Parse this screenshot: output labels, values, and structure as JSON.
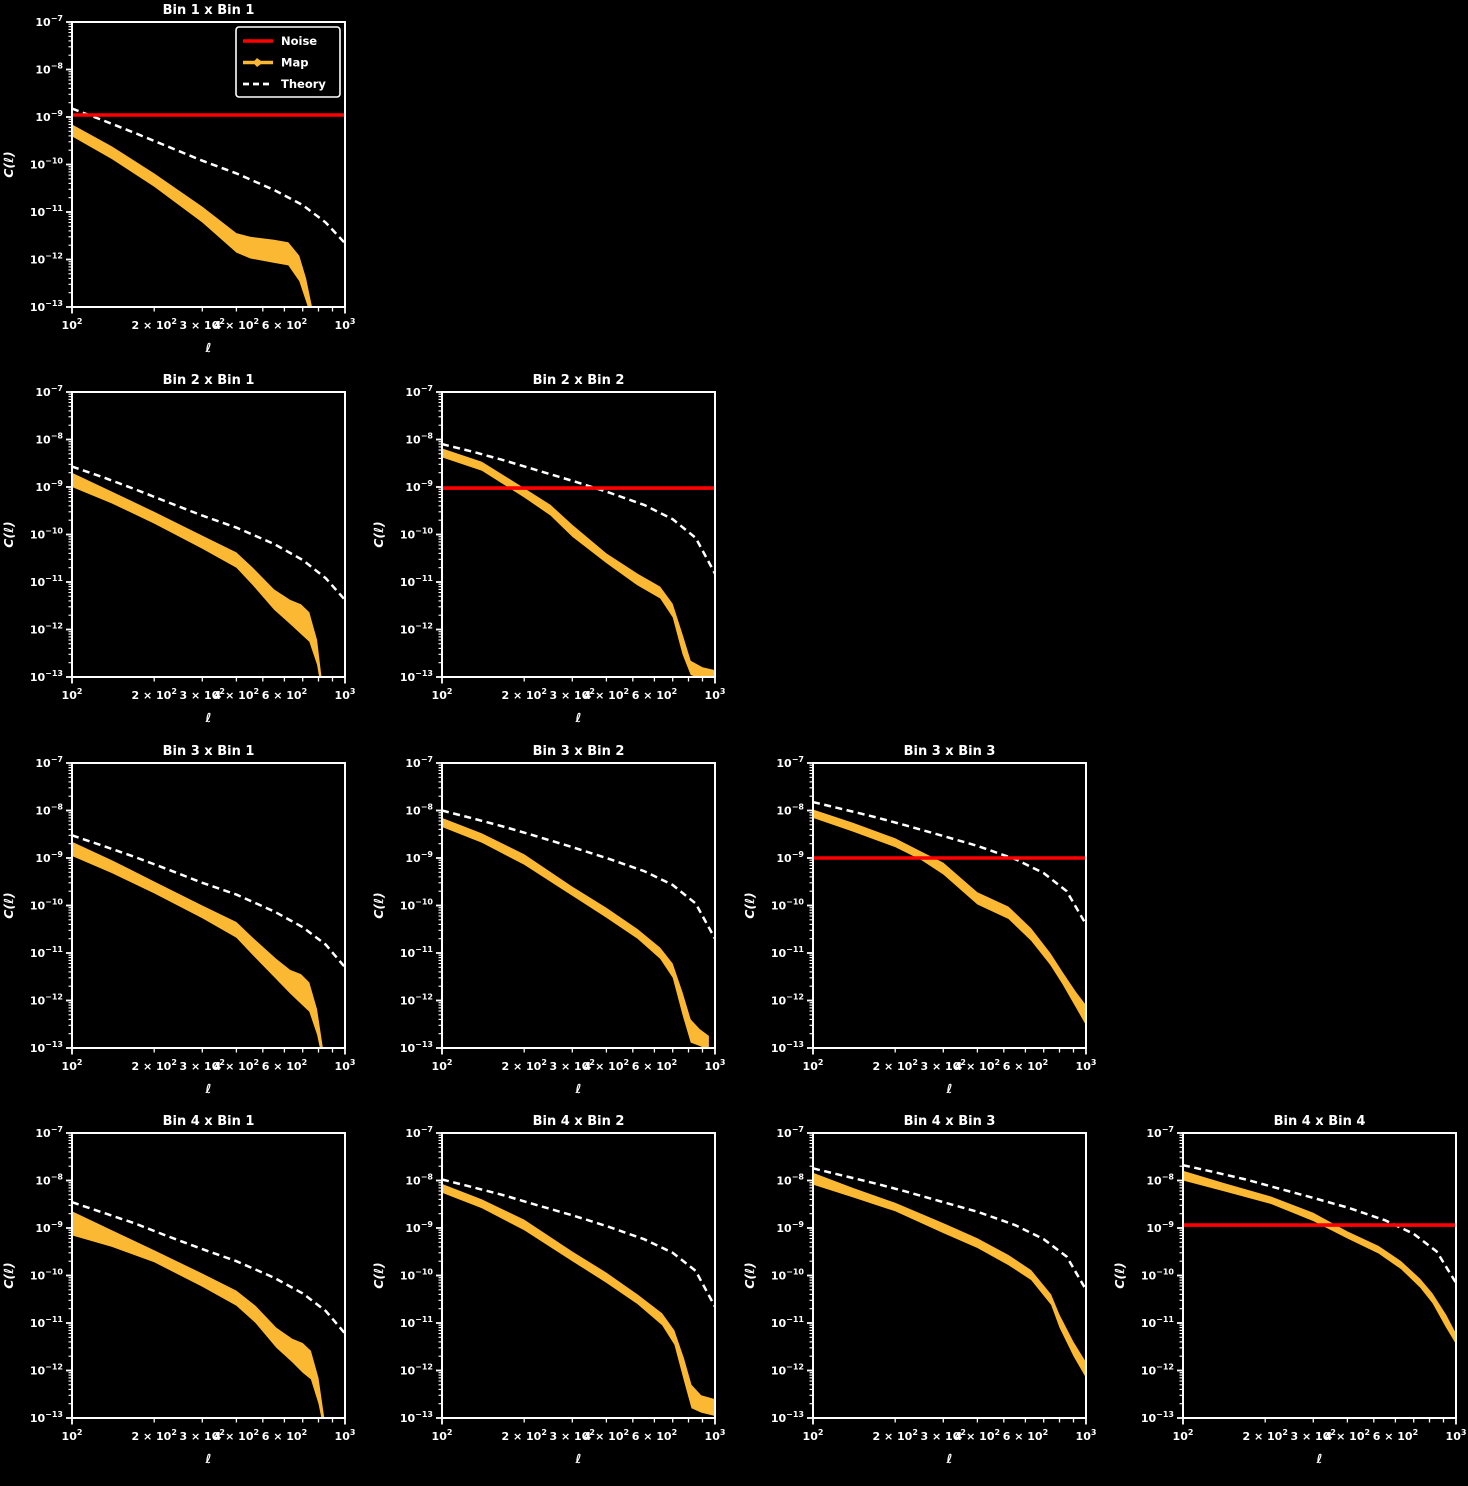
{
  "figure": {
    "background": "#000000",
    "text_color": "#ffffff",
    "colors": {
      "noise": "#ff0000",
      "map": "#fbb832",
      "theory": "#ffffff"
    }
  },
  "axes": {
    "xlabel": "ℓ",
    "ylabel": "C(ℓ)",
    "xscale": "log",
    "yscale": "log",
    "xlim": [
      100,
      1000
    ],
    "ylim": [
      1e-13,
      1e-07
    ],
    "grid": false,
    "xticks": [
      {
        "v": 100,
        "base": "10",
        "exp": "2",
        "major": true
      },
      {
        "v": 200,
        "base": "2 × 10",
        "exp": "2",
        "major": false
      },
      {
        "v": 300,
        "base": "3 × 10",
        "exp": "2",
        "major": false
      },
      {
        "v": 400,
        "base": "4 × 10",
        "exp": "2",
        "major": false
      },
      {
        "v": 600,
        "base": "6 × 10",
        "exp": "2",
        "major": false
      },
      {
        "v": 1000,
        "base": "10",
        "exp": "3",
        "major": true
      }
    ],
    "x_minor_unlabeled": [
      500,
      700,
      800,
      900
    ],
    "yticks": [
      {
        "v": 1e-07,
        "base": "10",
        "exp": "−7"
      },
      {
        "v": 1e-08,
        "base": "10",
        "exp": "−8"
      },
      {
        "v": 1e-09,
        "base": "10",
        "exp": "−9"
      },
      {
        "v": 1e-10,
        "base": "10",
        "exp": "−10"
      },
      {
        "v": 1e-11,
        "base": "10",
        "exp": "−11"
      },
      {
        "v": 1e-12,
        "base": "10",
        "exp": "−12"
      },
      {
        "v": 1e-13,
        "base": "10",
        "exp": "−13"
      }
    ]
  },
  "legend": {
    "position": "upper-right",
    "items": [
      {
        "label": "Noise",
        "color": "#ff0000",
        "style": "solid"
      },
      {
        "label": "Map",
        "color": "#fbb832",
        "style": "solid-marker"
      },
      {
        "label": "Theory",
        "color": "#ffffff",
        "style": "dashed"
      }
    ]
  },
  "chart_data": [
    {
      "type": "line",
      "title": "Bin 1 x Bin 1",
      "row": 0,
      "col": 0,
      "show_legend": true,
      "noise": 1.1e-09,
      "theory": {
        "x": [
          100,
          130,
          170,
          220,
          300,
          400,
          550,
          700,
          850,
          1000
        ],
        "y": [
          1.5e-09,
          8.5e-10,
          4.6e-10,
          2.5e-10,
          1.2e-10,
          6.5e-11,
          2.9e-11,
          1.4e-11,
          6e-12,
          2.2e-12
        ]
      },
      "map_band": {
        "x": [
          100,
          140,
          200,
          300,
          400,
          450,
          550,
          620,
          680,
          720,
          760
        ],
        "hi": [
          7e-10,
          2.4e-10,
          6.5e-11,
          1.3e-11,
          3.6e-12,
          3e-12,
          2.6e-12,
          2.3e-12,
          1.2e-12,
          4e-13,
          9e-14
        ],
        "lo": [
          3.9e-10,
          1.3e-10,
          3.4e-11,
          6e-12,
          1.4e-12,
          1.05e-12,
          8.5e-13,
          7.5e-13,
          3.5e-13,
          1.3e-13,
          5e-14
        ]
      }
    },
    {
      "type": "line",
      "title": "Bin 2 x Bin 1",
      "row": 1,
      "col": 0,
      "show_legend": false,
      "noise": null,
      "theory": {
        "x": [
          100,
          130,
          170,
          220,
          300,
          400,
          550,
          700,
          850,
          1000
        ],
        "y": [
          2.7e-09,
          1.6e-09,
          9e-10,
          5e-10,
          2.5e-10,
          1.4e-10,
          6.3e-11,
          2.9e-11,
          1.2e-11,
          4.2e-12
        ]
      },
      "map_band": {
        "x": [
          100,
          140,
          200,
          300,
          400,
          460,
          550,
          630,
          690,
          740,
          790,
          820
        ],
        "hi": [
          2e-09,
          8e-10,
          3e-10,
          9.5e-11,
          4.2e-11,
          2e-11,
          7e-12,
          4.2e-12,
          3.4e-12,
          2.3e-12,
          6e-13,
          1e-13
        ],
        "lo": [
          1e-09,
          4.5e-10,
          1.7e-10,
          5e-11,
          2e-11,
          8.5e-12,
          2.6e-12,
          1.3e-12,
          8e-13,
          5.5e-13,
          1.8e-13,
          5e-14
        ]
      }
    },
    {
      "type": "line",
      "title": "Bin 2 x Bin 2",
      "row": 1,
      "col": 1,
      "show_legend": false,
      "noise": 9.5e-10,
      "theory": {
        "x": [
          100,
          130,
          170,
          220,
          300,
          400,
          550,
          700,
          850,
          1000
        ],
        "y": [
          8e-09,
          5.5e-09,
          3.6e-09,
          2.3e-09,
          1.35e-09,
          8e-10,
          4.2e-10,
          2.1e-10,
          8.5e-11,
          1.5e-11
        ]
      },
      "map_band": {
        "x": [
          100,
          140,
          200,
          250,
          300,
          400,
          520,
          630,
          700,
          760,
          815,
          900,
          1000
        ],
        "hi": [
          6.5e-09,
          3.4e-09,
          9.5e-10,
          4.2e-10,
          1.6e-10,
          4e-11,
          1.5e-11,
          8e-12,
          3.5e-12,
          8e-13,
          2.2e-13,
          1.6e-13,
          1.4e-13
        ],
        "lo": [
          4.2e-09,
          2.2e-09,
          6e-10,
          2.5e-10,
          9e-11,
          2.5e-11,
          8.5e-12,
          4.5e-12,
          1.8e-12,
          3e-13,
          1.1e-13,
          9e-14,
          8e-14
        ]
      }
    },
    {
      "type": "line",
      "title": "Bin 3 x Bin 1",
      "row": 2,
      "col": 0,
      "show_legend": false,
      "noise": null,
      "theory": {
        "x": [
          100,
          130,
          170,
          220,
          300,
          400,
          550,
          700,
          850,
          1000
        ],
        "y": [
          3e-09,
          1.8e-09,
          1.05e-09,
          6e-10,
          3e-10,
          1.7e-10,
          7.5e-11,
          3.5e-11,
          1.5e-11,
          5e-12
        ]
      },
      "map_band": {
        "x": [
          100,
          140,
          200,
          300,
          400,
          460,
          560,
          630,
          690,
          740,
          790,
          830
        ],
        "hi": [
          2.2e-09,
          9e-10,
          3.2e-10,
          1e-10,
          4.5e-11,
          2.1e-11,
          7.5e-12,
          4.4e-12,
          3.6e-12,
          2.4e-12,
          6.5e-13,
          1e-13
        ],
        "lo": [
          1.1e-09,
          4.8e-10,
          1.8e-10,
          5.4e-11,
          2.1e-11,
          9e-12,
          2.8e-12,
          1.4e-12,
          8.5e-13,
          5.8e-13,
          1.9e-13,
          5e-14
        ]
      }
    },
    {
      "type": "line",
      "title": "Bin 3 x Bin 2",
      "row": 2,
      "col": 1,
      "show_legend": false,
      "noise": null,
      "theory": {
        "x": [
          100,
          130,
          170,
          220,
          300,
          400,
          550,
          700,
          850,
          1000
        ],
        "y": [
          1e-08,
          6.8e-09,
          4.5e-09,
          2.9e-09,
          1.7e-09,
          1e-09,
          5.3e-10,
          2.7e-10,
          1.1e-10,
          2e-11
        ]
      },
      "map_band": {
        "x": [
          100,
          140,
          200,
          300,
          400,
          520,
          630,
          700,
          760,
          815,
          880,
          950
        ],
        "hi": [
          7e-09,
          3.3e-09,
          1.2e-09,
          2.5e-10,
          9e-11,
          3.2e-11,
          1.3e-11,
          6e-12,
          1.5e-12,
          4e-13,
          2.5e-13,
          1.8e-13
        ],
        "lo": [
          4.5e-09,
          2.1e-09,
          7.2e-10,
          1.6e-10,
          5.5e-11,
          2e-11,
          7.5e-12,
          3e-12,
          5e-13,
          1.3e-13,
          1.1e-13,
          9e-14
        ]
      }
    },
    {
      "type": "line",
      "title": "Bin 3 x Bin 3",
      "row": 2,
      "col": 2,
      "show_legend": false,
      "noise": 1e-09,
      "theory": {
        "x": [
          100,
          130,
          170,
          220,
          300,
          400,
          550,
          700,
          850,
          1000
        ],
        "y": [
          1.5e-08,
          1.05e-08,
          7.2e-09,
          4.8e-09,
          2.9e-09,
          1.8e-09,
          9.5e-10,
          4.8e-10,
          2e-10,
          4e-11
        ]
      },
      "map_band": {
        "x": [
          100,
          140,
          200,
          250,
          300,
          400,
          520,
          630,
          740,
          820,
          920,
          1000
        ],
        "hi": [
          1.05e-08,
          5.5e-09,
          2.6e-09,
          1.35e-09,
          8e-10,
          1.9e-10,
          9.5e-11,
          3.3e-11,
          1e-11,
          4e-12,
          1.5e-12,
          8e-13
        ],
        "lo": [
          7e-09,
          3.6e-09,
          1.7e-09,
          9e-10,
          4.5e-10,
          1.05e-10,
          5.2e-11,
          1.8e-11,
          5.6e-12,
          2.2e-12,
          7e-13,
          3e-13
        ]
      }
    },
    {
      "type": "line",
      "title": "Bin 4 x Bin 1",
      "row": 3,
      "col": 0,
      "show_legend": false,
      "noise": null,
      "theory": {
        "x": [
          100,
          130,
          170,
          220,
          300,
          400,
          550,
          700,
          850,
          1000
        ],
        "y": [
          3.5e-09,
          2.1e-09,
          1.25e-09,
          7e-10,
          3.6e-10,
          2e-10,
          9e-11,
          4.2e-11,
          1.8e-11,
          6e-12
        ]
      },
      "map_band": {
        "x": [
          100,
          140,
          200,
          300,
          400,
          470,
          560,
          640,
          700,
          750,
          800,
          840
        ],
        "hi": [
          2.25e-09,
          9e-10,
          3.4e-10,
          1.1e-10,
          4.8e-11,
          2.3e-11,
          8e-12,
          4.7e-12,
          3.8e-12,
          2.6e-12,
          7e-13,
          1e-13
        ],
        "lo": [
          7e-10,
          4e-10,
          1.9e-10,
          5.8e-11,
          2.3e-11,
          1e-11,
          3e-12,
          1.5e-12,
          9e-13,
          6.5e-13,
          2e-13,
          5e-14
        ]
      }
    },
    {
      "type": "line",
      "title": "Bin 4 x Bin 2",
      "row": 3,
      "col": 1,
      "show_legend": false,
      "noise": null,
      "theory": {
        "x": [
          100,
          130,
          170,
          220,
          300,
          400,
          550,
          700,
          850,
          1000
        ],
        "y": [
          1.05e-08,
          7.2e-09,
          4.8e-09,
          3.1e-09,
          1.85e-09,
          1.1e-09,
          5.8e-10,
          3e-10,
          1.25e-10,
          2.2e-11
        ]
      },
      "map_band": {
        "x": [
          100,
          140,
          200,
          300,
          400,
          520,
          640,
          710,
          770,
          820,
          890,
          1000
        ],
        "hi": [
          8.5e-09,
          4e-09,
          1.5e-09,
          3.2e-10,
          1.15e-10,
          4e-11,
          1.6e-11,
          7e-12,
          1.8e-12,
          5e-13,
          3e-13,
          2.5e-13
        ],
        "lo": [
          5.5e-09,
          2.6e-09,
          9e-10,
          2e-10,
          7e-11,
          2.5e-11,
          9e-12,
          3.5e-12,
          6e-13,
          1.6e-13,
          1.3e-13,
          1.1e-13
        ]
      }
    },
    {
      "type": "line",
      "title": "Bin 4 x Bin 3",
      "row": 3,
      "col": 2,
      "show_legend": false,
      "noise": null,
      "theory": {
        "x": [
          100,
          130,
          170,
          220,
          300,
          400,
          550,
          700,
          850,
          1000
        ],
        "y": [
          1.8e-08,
          1.25e-08,
          8.6e-09,
          5.8e-09,
          3.5e-09,
          2.2e-09,
          1.15e-09,
          5.8e-10,
          2.5e-10,
          5e-11
        ]
      },
      "map_band": {
        "x": [
          100,
          140,
          200,
          300,
          400,
          520,
          630,
          745,
          800,
          900,
          1000
        ],
        "hi": [
          1.45e-08,
          7e-09,
          3.4e-09,
          1.27e-09,
          6.1e-10,
          2.7e-10,
          1.3e-10,
          4e-11,
          1.5e-11,
          4e-12,
          1.5e-12
        ],
        "lo": [
          8.2e-09,
          4.4e-09,
          2.25e-09,
          7.8e-10,
          3.8e-10,
          1.65e-10,
          8e-11,
          2.4e-11,
          8e-12,
          2e-12,
          7e-13
        ]
      }
    },
    {
      "type": "line",
      "title": "Bin 4 x Bin 4",
      "row": 3,
      "col": 3,
      "show_legend": false,
      "noise": 1.15e-09,
      "theory": {
        "x": [
          100,
          130,
          170,
          220,
          300,
          400,
          550,
          700,
          850,
          1000
        ],
        "y": [
          2.1e-08,
          1.5e-08,
          1.05e-08,
          7e-09,
          4.3e-09,
          2.7e-09,
          1.45e-09,
          7.5e-10,
          3.2e-10,
          7e-11
        ]
      },
      "map_band": {
        "x": [
          100,
          140,
          210,
          300,
          400,
          520,
          630,
          740,
          820,
          920,
          1000
        ],
        "hi": [
          1.6e-08,
          9e-09,
          4.6e-09,
          2.1e-09,
          8.5e-10,
          4.2e-10,
          2e-10,
          8.5e-11,
          4.2e-11,
          1.5e-11,
          6e-12
        ],
        "lo": [
          1e-08,
          6e-09,
          3.2e-09,
          1.4e-09,
          6e-10,
          2.9e-10,
          1.35e-10,
          5.5e-11,
          2.6e-11,
          8e-12,
          3.6e-12
        ]
      }
    }
  ]
}
